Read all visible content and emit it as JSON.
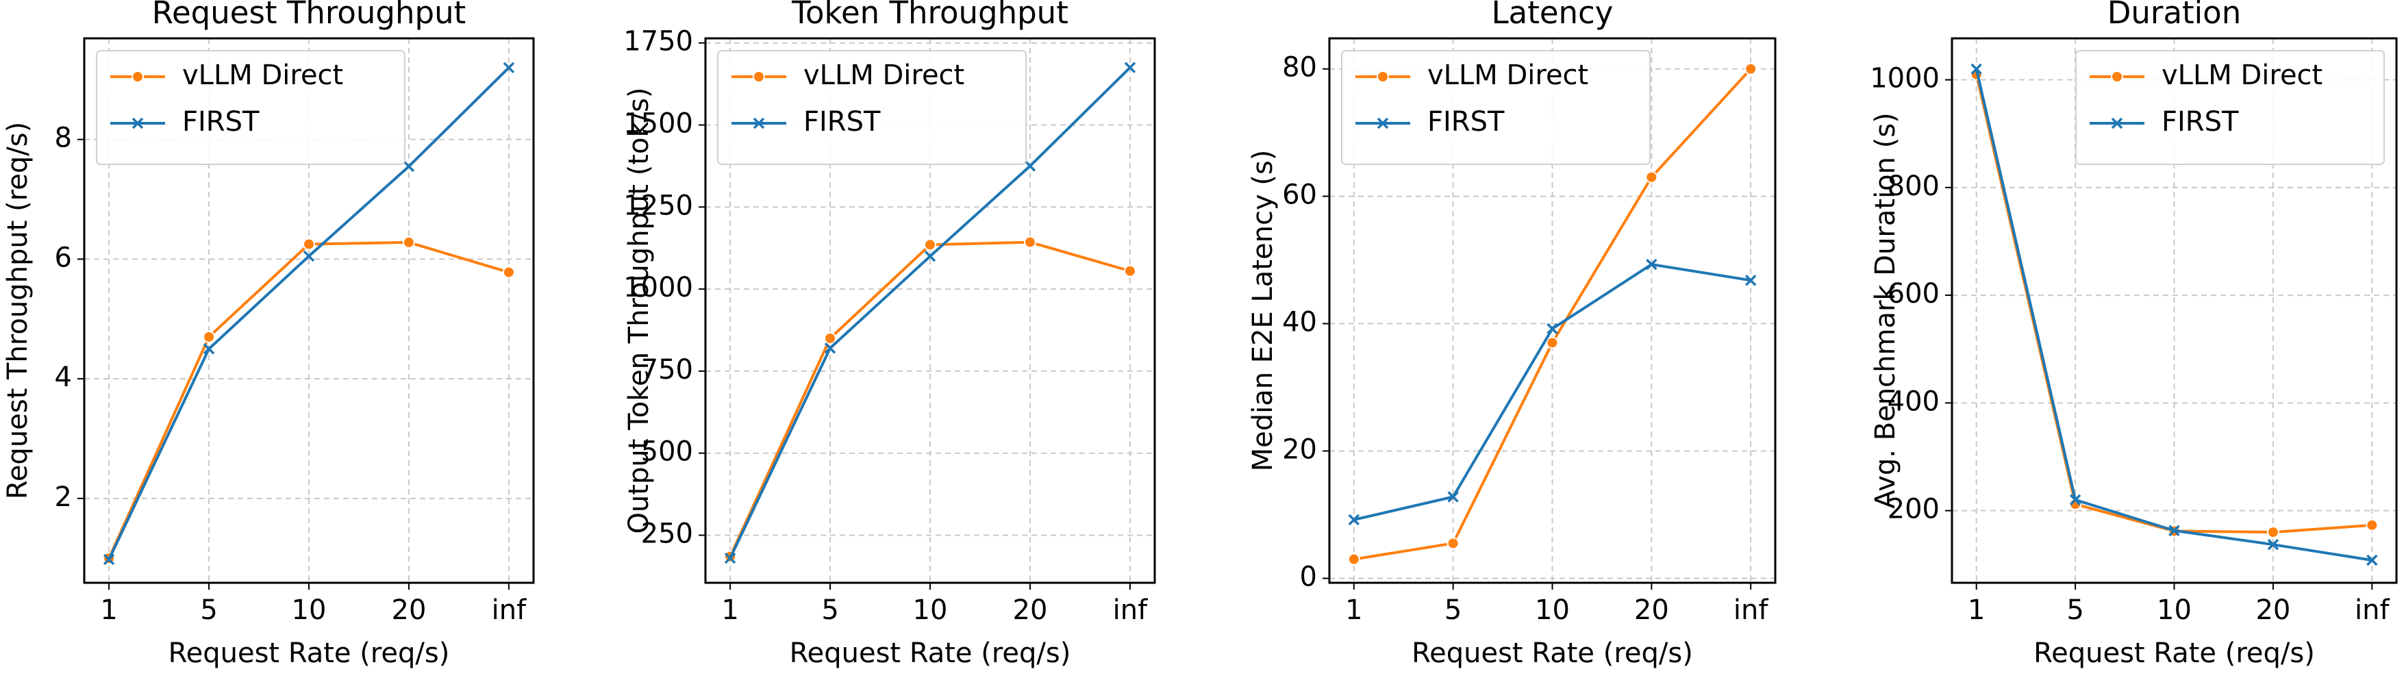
{
  "chart_data": [
    {
      "type": "line",
      "title": "Request Throughput",
      "xlabel": "Request Rate (req/s)",
      "ylabel": "Request Throughput (req/s)",
      "categories": [
        "1",
        "5",
        "10",
        "20",
        "inf"
      ],
      "series": [
        {
          "name": "vLLM Direct",
          "color": "#ff7f0e",
          "marker": "circle",
          "values": [
            1.0,
            4.7,
            6.25,
            6.28,
            5.78
          ]
        },
        {
          "name": "FIRST",
          "color": "#1f77b4",
          "marker": "x",
          "values": [
            0.98,
            4.5,
            6.05,
            7.55,
            9.2
          ]
        }
      ],
      "ylim": [
        0.59,
        9.69
      ],
      "yticks": [
        2,
        4,
        6,
        8
      ],
      "grid": true,
      "legend": "upper left"
    },
    {
      "type": "line",
      "title": "Token Throughput",
      "xlabel": "Request Rate (req/s)",
      "ylabel": "Output Token Throughput (tok/s)",
      "categories": [
        "1",
        "5",
        "10",
        "20",
        "inf"
      ],
      "series": [
        {
          "name": "vLLM Direct",
          "color": "#ff7f0e",
          "marker": "circle",
          "values": [
            185,
            850,
            1135,
            1143,
            1055
          ]
        },
        {
          "name": "FIRST",
          "color": "#1f77b4",
          "marker": "x",
          "values": [
            180,
            820,
            1100,
            1375,
            1675
          ]
        }
      ],
      "ylim": [
        105,
        1764
      ],
      "yticks": [
        250,
        500,
        750,
        1000,
        1250,
        1500,
        1750
      ],
      "grid": true,
      "legend": "upper left"
    },
    {
      "type": "line",
      "title": "Latency",
      "xlabel": "Request Rate (req/s)",
      "ylabel": "Median E2E Latency (s)",
      "categories": [
        "1",
        "5",
        "10",
        "20",
        "inf"
      ],
      "series": [
        {
          "name": "vLLM Direct",
          "color": "#ff7f0e",
          "marker": "circle",
          "values": [
            3,
            5.5,
            37,
            63,
            80
          ]
        },
        {
          "name": "FIRST",
          "color": "#1f77b4",
          "marker": "x",
          "values": [
            9.2,
            12.8,
            39.2,
            49.3,
            46.8
          ]
        }
      ],
      "ylim": [
        -0.7,
        84.8
      ],
      "yticks": [
        0,
        20,
        40,
        60,
        80
      ],
      "grid": true,
      "legend": "upper left"
    },
    {
      "type": "line",
      "title": "Duration",
      "xlabel": "Request Rate (req/s)",
      "ylabel": "Avg. Benchmark Duration (s)",
      "categories": [
        "1",
        "5",
        "10",
        "20",
        "inf"
      ],
      "series": [
        {
          "name": "vLLM Direct",
          "color": "#ff7f0e",
          "marker": "circle",
          "values": [
            1010,
            212,
            162,
            160,
            173
          ]
        },
        {
          "name": "FIRST",
          "color": "#1f77b4",
          "marker": "x",
          "values": [
            1020,
            220,
            163,
            137,
            108
          ]
        }
      ],
      "ylim": [
        66,
        1077
      ],
      "yticks": [
        200,
        400,
        600,
        800,
        1000
      ],
      "grid": true,
      "legend": "upper right"
    }
  ]
}
